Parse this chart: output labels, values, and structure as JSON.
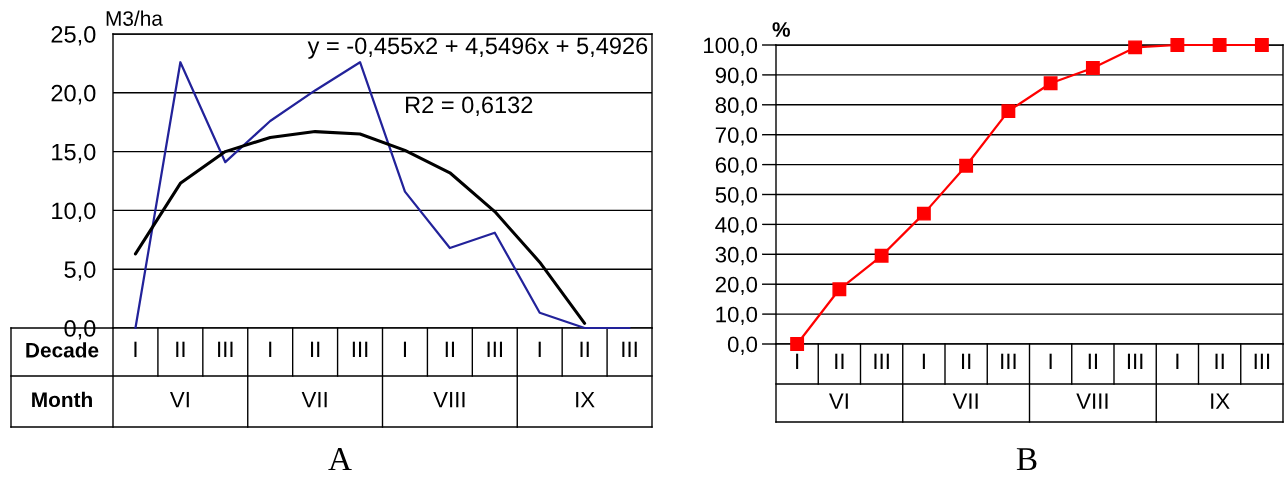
{
  "chart_data": [
    {
      "type": "line",
      "title": "A",
      "ylabel": "M3/ha",
      "xlabel": "Decade",
      "categories": [
        "I",
        "II",
        "III",
        "I",
        "II",
        "III",
        "I",
        "II",
        "III",
        "I",
        "II",
        "III"
      ],
      "ylim": [
        0,
        25
      ],
      "yticks": [
        {
          "value": 0,
          "label": "0,0"
        },
        {
          "value": 5,
          "label": "5,0"
        },
        {
          "value": 10,
          "label": "10,0"
        },
        {
          "value": 15,
          "label": "15,0"
        },
        {
          "value": 20,
          "label": "20,0"
        },
        {
          "value": 25,
          "label": "25,0"
        }
      ],
      "grid": "y",
      "series": [
        {
          "color": "#22229a",
          "values": [
            0,
            22.6,
            14.1,
            17.6,
            20.2,
            22.6,
            11.6,
            6.8,
            8.1,
            1.3,
            0,
            0
          ]
        },
        {
          "color": "#000000",
          "values": [
            6.3,
            12.3,
            15.0,
            16.2,
            16.7,
            16.5,
            15.1,
            13.2,
            9.9,
            5.6,
            0.4,
            null
          ]
        }
      ],
      "annotations": [
        "y = -0,455x2 + 4,5496x + 5,4926",
        "R2 = 0,6132",
        "Month",
        "VI",
        "VII",
        "VIII",
        "IX"
      ]
    },
    {
      "type": "line",
      "title": "B",
      "ylabel": "%",
      "categories": [
        "I",
        "II",
        "III",
        "I",
        "II",
        "III",
        "I",
        "II",
        "III",
        "I",
        "II",
        "III"
      ],
      "ylim": [
        0,
        100
      ],
      "yticks": [
        {
          "value": 0,
          "label": "0,0"
        },
        {
          "value": 10,
          "label": "10,0"
        },
        {
          "value": 20,
          "label": "20,0"
        },
        {
          "value": 30,
          "label": "30,0"
        },
        {
          "value": 40,
          "label": "40,0"
        },
        {
          "value": 50,
          "label": "50,0"
        },
        {
          "value": 60,
          "label": "60,0"
        },
        {
          "value": 70,
          "label": "70,0"
        },
        {
          "value": 80,
          "label": "80,0"
        },
        {
          "value": 90,
          "label": "90,0"
        },
        {
          "value": 100,
          "label": "100,0"
        }
      ],
      "grid": "y",
      "marker": "square",
      "series": [
        {
          "color": "#ff0000",
          "values": [
            0,
            18.3,
            29.5,
            43.6,
            59.6,
            77.9,
            87.2,
            92.3,
            99.2,
            100,
            100,
            100
          ]
        }
      ],
      "annotations": [
        "VI",
        "VII",
        "VIII",
        "IX"
      ]
    }
  ]
}
